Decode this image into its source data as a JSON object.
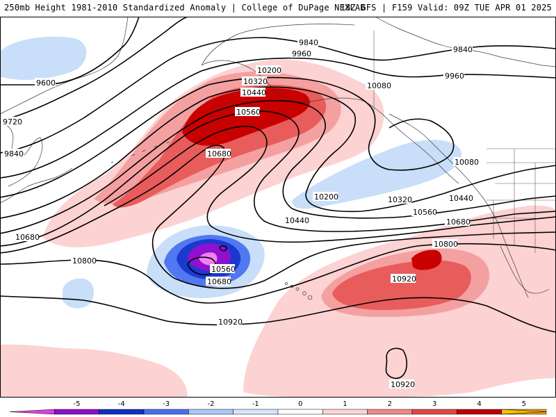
{
  "header": {
    "left_title": "250mb Height 1981-2010 Standardized Anomaly | College of DuPage NEXLAB",
    "right_title": "18Z GFS | F159 Valid: 09Z TUE APR 01 2025"
  },
  "contour_labels": [
    {
      "id": "c9600",
      "text": "9600"
    },
    {
      "id": "c9720",
      "text": "9720"
    },
    {
      "id": "c9840a",
      "text": "9840"
    },
    {
      "id": "c9840b",
      "text": "9840"
    },
    {
      "id": "c9840c",
      "text": "9840"
    },
    {
      "id": "c9960a",
      "text": "9960"
    },
    {
      "id": "c9960b",
      "text": "9960"
    },
    {
      "id": "c10080a",
      "text": "10080"
    },
    {
      "id": "c10080b",
      "text": "10080"
    },
    {
      "id": "c10200a",
      "text": "10200"
    },
    {
      "id": "c10200b",
      "text": "10200"
    },
    {
      "id": "c10320a",
      "text": "10320"
    },
    {
      "id": "c10320b",
      "text": "10320"
    },
    {
      "id": "c10440a",
      "text": "10440"
    },
    {
      "id": "c10440b",
      "text": "10440"
    },
    {
      "id": "c10440c",
      "text": "10440"
    },
    {
      "id": "c10560a",
      "text": "10560"
    },
    {
      "id": "c10560b",
      "text": "10560"
    },
    {
      "id": "c10560c",
      "text": "10560"
    },
    {
      "id": "c10680a",
      "text": "10680"
    },
    {
      "id": "c10680b",
      "text": "10680"
    },
    {
      "id": "c10680c",
      "text": "10680"
    },
    {
      "id": "c10680d",
      "text": "10680"
    },
    {
      "id": "c10800a",
      "text": "10800"
    },
    {
      "id": "c10800b",
      "text": "10800"
    },
    {
      "id": "c10920a",
      "text": "10920"
    },
    {
      "id": "c10920b",
      "text": "10920"
    },
    {
      "id": "c10920c",
      "text": "10920"
    }
  ],
  "legend": {
    "ticks": [
      "-5",
      "-4",
      "-3",
      "-2",
      "-1",
      "0",
      "1",
      "2",
      "3",
      "4",
      "5"
    ],
    "colors": [
      "#e040e0",
      "#8a10c8",
      "#1030c0",
      "#4a6ef0",
      "#a8c8f8",
      "#d6e6fa",
      "#ffffff",
      "#fcd4d4",
      "#f08888",
      "#e04848",
      "#c00000",
      "#f0a010",
      "#f8c000"
    ]
  },
  "anomaly_colors": {
    "neg5": "#f080f0",
    "neg4": "#9010d0",
    "neg3": "#1a3acf",
    "neg2": "#5078f0",
    "neg1": "#c9def8",
    "pos1": "#fcd2d2",
    "pos2": "#f4a0a0",
    "pos3": "#e85c5c",
    "pos4": "#c80000"
  }
}
